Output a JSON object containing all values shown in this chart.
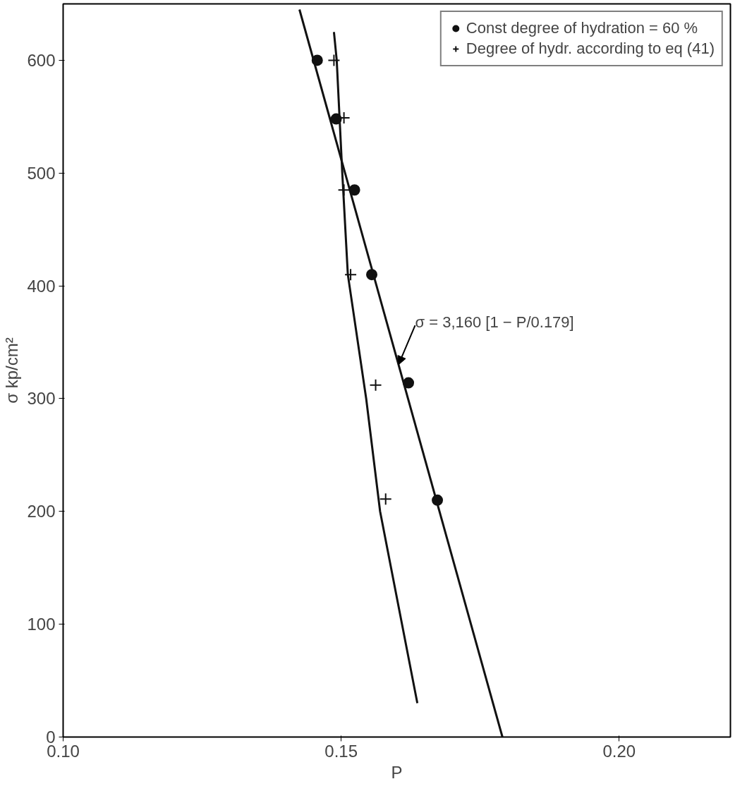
{
  "chart_data": {
    "type": "scatter",
    "xlabel": "P",
    "ylabel": "σ kp/cm²",
    "xlim": [
      0.1,
      0.22
    ],
    "ylim": [
      0,
      650
    ],
    "xticks": [
      {
        "value": 0.1,
        "label": "0.10"
      },
      {
        "value": 0.15,
        "label": "0.15"
      },
      {
        "value": 0.2,
        "label": "0.20"
      }
    ],
    "yticks": [
      0,
      100,
      200,
      300,
      400,
      500,
      600
    ],
    "grid": false,
    "legend": "top right",
    "series": [
      {
        "name": "Const degree of hydration = 60 %",
        "marker": "circle",
        "color": "#111111",
        "x": [
          0.1457,
          0.1491,
          0.1524,
          0.1555,
          0.1621,
          0.1673
        ],
        "values": [
          600,
          548,
          485,
          410,
          314,
          210
        ]
      },
      {
        "type": "line",
        "marker": "none",
        "color": "#111111",
        "x": [
          0.1425,
          0.179
        ],
        "values": [
          645,
          0
        ]
      },
      {
        "name": "Degree of hydr. according to eq (41)",
        "marker": "cross",
        "color": "#111111",
        "x": [
          0.1487,
          0.1505,
          0.1505,
          0.1517,
          0.1562,
          0.158
        ],
        "values": [
          600,
          549,
          485,
          410,
          312,
          211
        ]
      },
      {
        "type": "line",
        "marker": "none",
        "color": "#111111",
        "x": [
          0.1487,
          0.1492,
          0.1502,
          0.1512,
          0.1545,
          0.157,
          0.1637
        ],
        "values": [
          625,
          600,
          500,
          410,
          300,
          200,
          30
        ]
      }
    ],
    "annotations": [
      {
        "text": "σ = 3,160 [1 − P/0.179]",
        "x": 0.1603,
        "y": 330
      }
    ]
  }
}
